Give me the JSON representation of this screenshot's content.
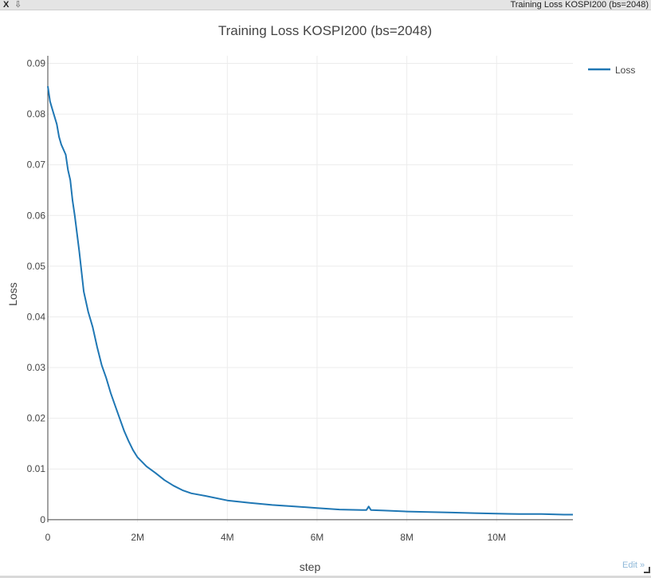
{
  "window": {
    "close_label": "X",
    "pin_label": "⇩",
    "title": "Training Loss KOSPI200 (bs=2048)"
  },
  "edit_label": "Edit »",
  "chart_data": {
    "type": "line",
    "title": "Training Loss KOSPI200 (bs=2048)",
    "xlabel": "step",
    "ylabel": "Loss",
    "xlim": [
      0,
      11700000
    ],
    "ylim": [
      -0.0005,
      0.0915
    ],
    "x_ticks": [
      0,
      2000000,
      4000000,
      6000000,
      8000000,
      10000000
    ],
    "x_tick_labels": [
      "0",
      "2M",
      "4M",
      "6M",
      "8M",
      "10M"
    ],
    "y_ticks": [
      0,
      0.01,
      0.02,
      0.03,
      0.04,
      0.05,
      0.06,
      0.07,
      0.08,
      0.09
    ],
    "y_tick_labels": [
      "0",
      "0.01",
      "0.02",
      "0.03",
      "0.04",
      "0.05",
      "0.06",
      "0.07",
      "0.08",
      "0.09"
    ],
    "grid": true,
    "legend": "top-right",
    "series": [
      {
        "name": "Loss",
        "color": "#1f77b4",
        "x": [
          0,
          50000,
          100000,
          200000,
          250000,
          300000,
          400000,
          450000,
          500000,
          550000,
          600000,
          700000,
          800000,
          850000,
          900000,
          1000000,
          1100000,
          1200000,
          1300000,
          1400000,
          1500000,
          1600000,
          1700000,
          1800000,
          1900000,
          2000000,
          2200000,
          2400000,
          2600000,
          2800000,
          3000000,
          3200000,
          3500000,
          4000000,
          4500000,
          5000000,
          5500000,
          6000000,
          6500000,
          7000000,
          7100000,
          7150000,
          7200000,
          7500000,
          8000000,
          8500000,
          9000000,
          9500000,
          10000000,
          10500000,
          11000000,
          11500000,
          11700000
        ],
        "y": [
          0.0855,
          0.0825,
          0.081,
          0.078,
          0.0755,
          0.074,
          0.072,
          0.069,
          0.067,
          0.063,
          0.06,
          0.053,
          0.045,
          0.043,
          0.041,
          0.038,
          0.034,
          0.0305,
          0.028,
          0.025,
          0.0225,
          0.02,
          0.0175,
          0.0155,
          0.0137,
          0.0123,
          0.0105,
          0.0092,
          0.0078,
          0.0067,
          0.0058,
          0.0052,
          0.0047,
          0.0038,
          0.0033,
          0.0029,
          0.0026,
          0.0023,
          0.002,
          0.0019,
          0.0019,
          0.0026,
          0.0019,
          0.0018,
          0.0016,
          0.0015,
          0.0014,
          0.0013,
          0.0012,
          0.0011,
          0.0011,
          0.001,
          0.001
        ]
      }
    ]
  }
}
